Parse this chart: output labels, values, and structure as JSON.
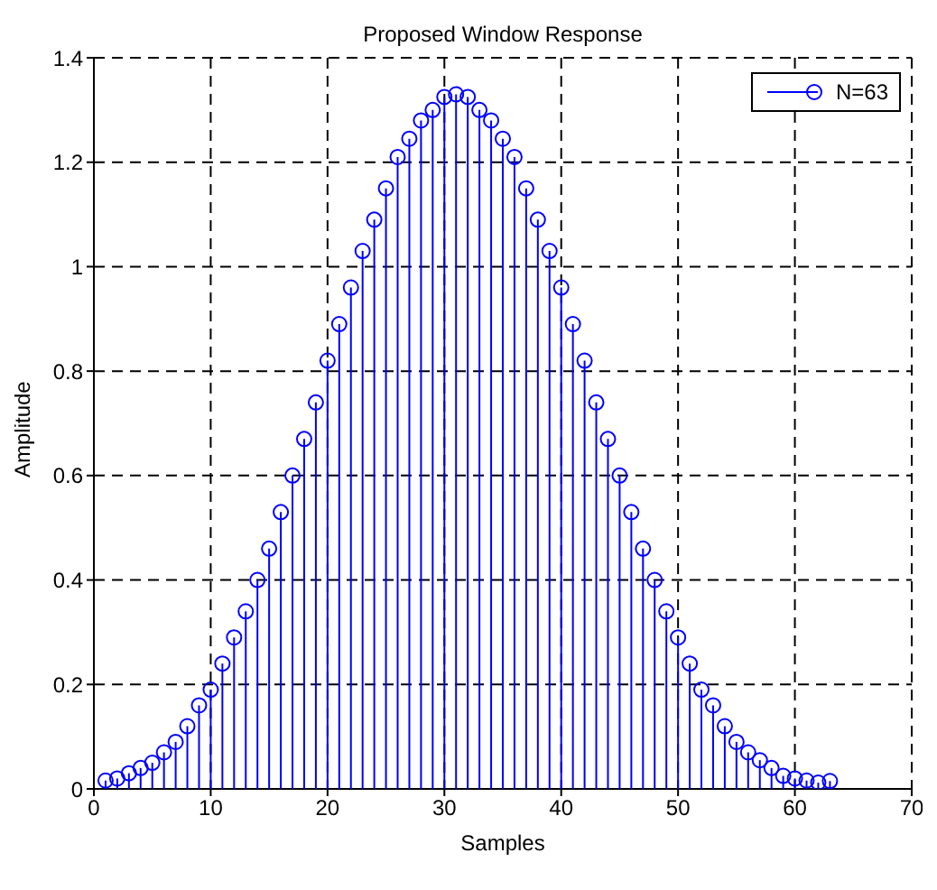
{
  "chart_data": {
    "type": "lollipop",
    "title": "Proposed Window Response",
    "xlabel": "Samples",
    "ylabel": "Amplitude",
    "x": [
      1,
      2,
      3,
      4,
      5,
      6,
      7,
      8,
      9,
      10,
      11,
      12,
      13,
      14,
      15,
      16,
      17,
      18,
      19,
      20,
      21,
      22,
      23,
      24,
      25,
      26,
      27,
      28,
      29,
      30,
      31,
      32,
      33,
      34,
      35,
      36,
      37,
      38,
      39,
      40,
      41,
      42,
      43,
      44,
      45,
      46,
      47,
      48,
      49,
      50,
      51,
      52,
      53,
      54,
      55,
      56,
      57,
      58,
      59,
      60,
      61,
      62,
      63
    ],
    "series": [
      {
        "name": "N=63",
        "color": "#0000ff",
        "values": [
          0.016,
          0.02,
          0.03,
          0.04,
          0.05,
          0.07,
          0.09,
          0.12,
          0.16,
          0.19,
          0.24,
          0.29,
          0.34,
          0.4,
          0.46,
          0.53,
          0.6,
          0.67,
          0.74,
          0.82,
          0.89,
          0.96,
          1.03,
          1.09,
          1.15,
          1.21,
          1.245,
          1.28,
          1.3,
          1.325,
          1.33,
          1.325,
          1.3,
          1.28,
          1.245,
          1.21,
          1.15,
          1.09,
          1.03,
          0.96,
          0.89,
          0.82,
          0.74,
          0.67,
          0.6,
          0.53,
          0.46,
          0.4,
          0.34,
          0.29,
          0.24,
          0.19,
          0.16,
          0.12,
          0.09,
          0.07,
          0.055,
          0.04,
          0.025,
          0.02,
          0.016,
          0.012,
          0.015
        ]
      }
    ],
    "xlim": [
      0,
      70
    ],
    "xticks": [
      0,
      10,
      20,
      30,
      40,
      50,
      60,
      70
    ],
    "ylim": [
      0,
      1.4
    ],
    "yticks": [
      0,
      0.2,
      0.4,
      0.6,
      0.8,
      1,
      1.2,
      1.4
    ],
    "grid": true,
    "legend": "top right",
    "marker": "circle"
  }
}
